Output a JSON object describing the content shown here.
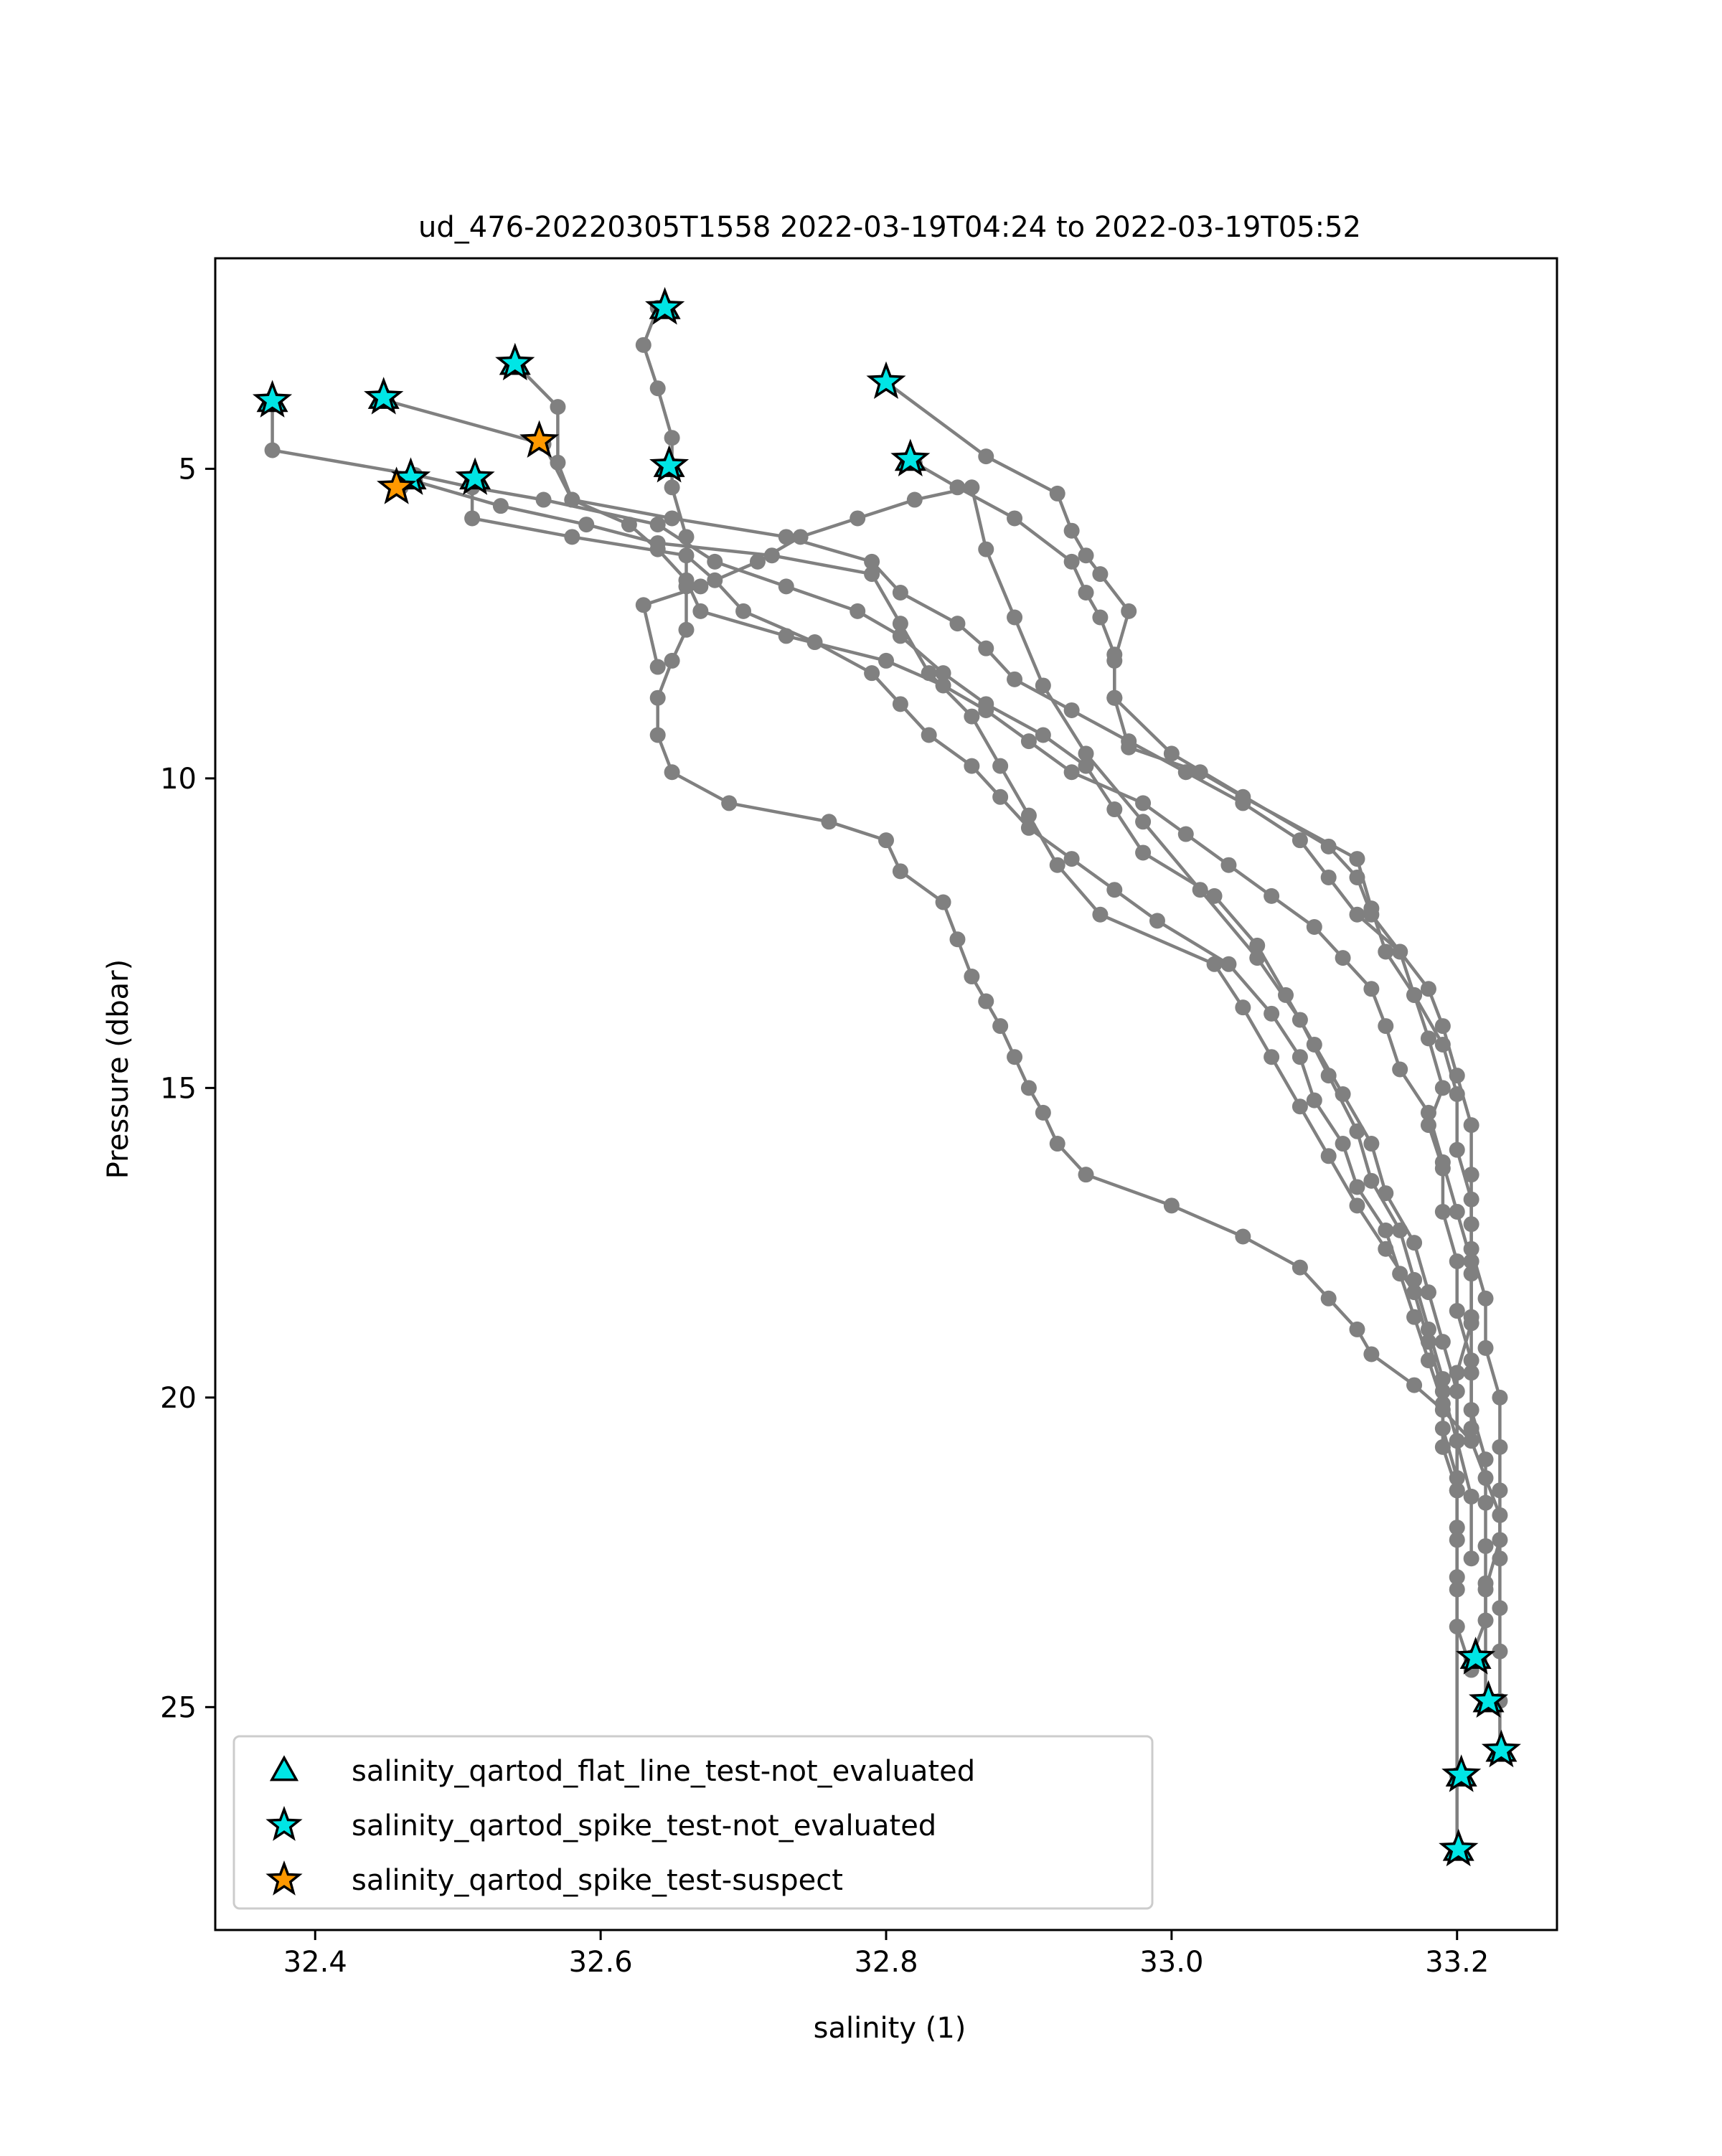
{
  "chart_data": {
    "type": "scatter",
    "title": "ud_476-20220305T1558 2022-03-19T04:24 to 2022-03-19T05:52",
    "xlabel": "salinity (1)",
    "ylabel": "Pressure (dbar)",
    "xlim": [
      32.33,
      33.27
    ],
    "ylim": [
      28.6,
      1.6
    ],
    "y_inverted": true,
    "x_ticks": [
      32.4,
      32.6,
      32.8,
      33.0,
      33.2
    ],
    "x_tick_labels": [
      "32.4",
      "32.6",
      "32.8",
      "33.0",
      "33.2"
    ],
    "y_ticks": [
      5,
      10,
      15,
      20,
      25
    ],
    "y_tick_labels": [
      "5",
      "10",
      "15",
      "20",
      "25"
    ],
    "grid": false,
    "line_color": "#808080",
    "legend_position": "lower-left",
    "legend": [
      {
        "label": "salinity_qartod_flat_line_test-not_evaluated",
        "marker": "triangle",
        "color": "#00e5e5"
      },
      {
        "label": "salinity_qartod_spike_test-not_evaluated",
        "marker": "star",
        "color": "#00e5e5"
      },
      {
        "label": "salinity_qartod_spike_test-suspect",
        "marker": "star",
        "color": "#ff9900"
      }
    ],
    "series": [
      {
        "x": [
          32.8,
          32.87,
          32.92,
          32.93,
          32.94,
          32.95,
          32.97,
          32.96,
          32.96,
          33.0,
          33.11,
          33.13,
          33.14,
          33.16,
          33.17,
          33.18,
          33.19,
          33.18,
          33.19,
          33.19,
          33.2,
          33.2,
          33.21,
          33.21,
          33.22,
          33.22,
          33.22,
          33.22,
          33.22,
          33.21
        ],
        "y": [
          3.6,
          4.8,
          5.4,
          6.0,
          6.4,
          6.7,
          7.3,
          8.1,
          8.7,
          9.6,
          11.1,
          11.6,
          12.2,
          12.8,
          13.5,
          14.2,
          15.0,
          15.6,
          16.3,
          17.0,
          17.8,
          18.6,
          19.4,
          20.2,
          21.0,
          21.7,
          22.4,
          23.0,
          23.6,
          24.2
        ]
      },
      {
        "x": [
          32.82,
          32.85,
          32.89,
          32.93,
          32.94,
          32.95,
          32.96,
          32.96,
          32.97,
          33.02,
          33.05,
          33.13,
          33.14,
          33.15,
          33.17,
          33.19,
          33.2,
          33.2,
          33.21,
          33.21,
          33.22,
          33.22,
          33.23,
          33.23,
          33.23,
          33.23,
          33.22,
          33.22
        ],
        "y": [
          4.9,
          5.3,
          5.8,
          6.5,
          7.0,
          7.4,
          8.0,
          8.7,
          9.5,
          9.9,
          10.3,
          11.3,
          12.1,
          12.8,
          13.5,
          14.3,
          15.1,
          16.0,
          16.8,
          17.6,
          18.4,
          19.2,
          20.0,
          20.8,
          21.5,
          22.3,
          23.1,
          24.9
        ]
      },
      {
        "x": [
          32.64,
          32.63,
          32.64,
          32.65,
          32.65,
          32.66,
          32.66,
          32.66,
          32.65,
          32.64,
          32.64,
          32.65,
          32.69,
          32.76,
          32.8,
          32.81,
          32.84,
          32.85,
          32.86,
          32.87,
          32.88,
          32.89,
          32.9,
          32.91,
          32.92,
          32.94,
          33.0,
          33.05,
          33.09,
          33.11,
          33.13,
          33.14,
          33.17,
          33.19,
          33.21,
          33.22,
          33.23,
          33.23,
          33.23,
          33.23,
          33.23,
          33.23
        ],
        "y": [
          2.4,
          3.0,
          3.7,
          4.5,
          5.3,
          6.1,
          6.9,
          7.6,
          8.1,
          8.7,
          9.3,
          9.9,
          10.4,
          10.7,
          11.0,
          11.5,
          12.0,
          12.6,
          13.2,
          13.6,
          14.0,
          14.5,
          15.0,
          15.4,
          15.9,
          16.4,
          16.9,
          17.4,
          17.9,
          18.4,
          18.9,
          19.3,
          19.8,
          20.2,
          20.7,
          21.3,
          21.9,
          22.6,
          23.4,
          24.1,
          24.9,
          25.7
        ]
      },
      {
        "x": [
          32.54,
          32.57,
          32.57,
          32.58,
          32.62,
          32.64,
          32.66,
          32.67,
          32.73,
          32.8,
          32.84,
          32.87,
          32.9,
          32.93,
          32.98,
          33.01,
          33.04,
          33.07,
          33.1,
          33.12,
          33.14,
          33.15,
          33.16,
          33.18,
          33.19,
          33.2,
          33.21,
          33.21,
          33.21,
          33.21
        ],
        "y": [
          3.3,
          4.0,
          4.9,
          5.5,
          5.9,
          6.3,
          6.8,
          7.3,
          7.7,
          8.1,
          8.5,
          8.9,
          9.4,
          9.9,
          10.4,
          10.9,
          11.4,
          11.9,
          12.4,
          12.9,
          13.4,
          14.0,
          14.7,
          15.4,
          16.2,
          17.0,
          17.8,
          18.7,
          19.6,
          20.5
        ]
      },
      {
        "x": [
          32.45,
          32.56,
          32.58,
          32.65,
          32.73,
          32.79,
          32.81,
          32.85,
          32.87,
          32.89,
          32.93,
          32.97,
          33.01,
          33.05,
          33.09,
          33.11,
          33.13,
          33.16,
          33.18,
          33.19,
          33.2,
          33.21,
          33.21,
          33.21,
          33.21,
          33.21,
          33.2,
          33.2
        ],
        "y": [
          3.9,
          4.6,
          5.5,
          5.8,
          6.1,
          6.5,
          7.0,
          7.5,
          7.9,
          8.4,
          8.9,
          9.4,
          9.9,
          10.4,
          11.0,
          11.6,
          12.2,
          12.8,
          13.4,
          14.0,
          14.8,
          15.6,
          16.4,
          17.2,
          18.0,
          18.8,
          19.6,
          26.1
        ]
      },
      {
        "x": [
          32.37,
          32.37,
          32.47,
          32.51,
          32.56,
          32.64,
          32.68,
          32.73,
          32.78,
          32.81,
          32.84,
          32.87,
          32.91,
          32.94,
          32.96,
          32.98,
          33.03,
          33.06,
          33.08,
          33.1,
          33.12,
          33.14,
          33.15,
          33.17,
          33.18,
          33.19,
          33.2,
          33.2,
          33.2,
          33.2,
          33.2,
          33.2
        ],
        "y": [
          3.9,
          4.7,
          5.1,
          5.3,
          5.5,
          5.9,
          6.5,
          6.9,
          7.3,
          7.7,
          8.3,
          8.8,
          9.3,
          9.8,
          10.5,
          11.2,
          11.9,
          12.7,
          13.5,
          14.3,
          15.1,
          15.9,
          16.7,
          17.5,
          18.3,
          19.1,
          19.9,
          20.7,
          21.5,
          22.3,
          23.1,
          27.3
        ]
      },
      {
        "x": [
          32.51,
          32.51,
          32.58,
          32.66,
          32.68,
          32.7,
          32.75,
          32.79,
          32.81,
          32.83,
          32.86,
          32.88,
          32.9,
          32.93,
          32.96,
          32.99,
          33.04,
          33.07,
          33.09,
          33.1,
          33.12,
          33.13,
          33.15,
          33.16,
          33.17,
          33.18,
          33.19,
          33.19,
          33.2
        ],
        "y": [
          5.2,
          5.8,
          6.1,
          6.4,
          6.8,
          7.3,
          7.8,
          8.3,
          8.8,
          9.3,
          9.8,
          10.3,
          10.8,
          11.3,
          11.8,
          12.3,
          13.0,
          13.8,
          14.5,
          15.2,
          15.9,
          16.6,
          17.3,
          18.0,
          18.7,
          19.4,
          20.1,
          20.8,
          21.5
        ]
      },
      {
        "x": [
          32.46,
          32.47,
          32.53,
          32.59,
          32.64,
          32.72,
          32.79,
          32.81,
          32.83,
          32.86,
          32.88,
          32.9,
          32.92,
          32.95,
          33.03,
          33.05,
          33.07,
          33.09,
          33.11,
          33.13,
          33.15,
          33.17,
          33.18,
          33.19,
          33.2,
          33.21,
          33.21
        ],
        "y": [
          5.3,
          5.2,
          5.6,
          5.9,
          6.2,
          6.4,
          6.7,
          7.5,
          8.3,
          9.0,
          9.8,
          10.6,
          11.4,
          12.2,
          13.0,
          13.7,
          14.5,
          15.3,
          16.1,
          16.9,
          17.6,
          18.3,
          19.1,
          19.9,
          20.7,
          21.6,
          22.6
        ]
      },
      {
        "x": [
          32.64,
          32.63,
          32.67,
          32.71,
          32.74,
          32.78,
          32.82,
          32.86,
          32.87,
          32.89,
          32.91,
          32.94,
          32.98,
          33.02,
          33.06,
          33.09,
          33.11,
          33.13,
          33.14,
          33.16,
          33.17,
          33.18,
          33.19,
          33.19,
          33.2,
          33.2,
          33.2,
          33.2,
          33.21
        ],
        "y": [
          8.2,
          7.2,
          6.9,
          6.5,
          6.1,
          5.8,
          5.5,
          5.3,
          6.3,
          7.4,
          8.5,
          9.6,
          10.7,
          11.8,
          12.9,
          13.9,
          14.8,
          15.7,
          16.5,
          17.3,
          18.1,
          18.9,
          19.7,
          20.5,
          21.3,
          22.1,
          22.9,
          23.7,
          24.4
        ]
      }
    ],
    "flagged_points": [
      {
        "category": "salinity_qartod_spike_test-not_evaluated",
        "x": 32.645,
        "y": 2.4
      },
      {
        "category": "salinity_qartod_spike_test-not_evaluated",
        "x": 32.54,
        "y": 3.3
      },
      {
        "category": "salinity_qartod_spike_test-not_evaluated",
        "x": 32.37,
        "y": 3.9
      },
      {
        "category": "salinity_qartod_spike_test-not_evaluated",
        "x": 32.448,
        "y": 3.85
      },
      {
        "category": "salinity_qartod_spike_test-not_evaluated",
        "x": 32.8,
        "y": 3.6
      },
      {
        "category": "salinity_qartod_spike_test-not_evaluated",
        "x": 32.817,
        "y": 4.85
      },
      {
        "category": "salinity_qartod_spike_test-not_evaluated",
        "x": 32.648,
        "y": 4.95
      },
      {
        "category": "salinity_qartod_spike_test-not_evaluated",
        "x": 32.467,
        "y": 5.15
      },
      {
        "category": "salinity_qartod_spike_test-not_evaluated",
        "x": 32.512,
        "y": 5.15
      },
      {
        "category": "salinity_qartod_spike_test-suspect",
        "x": 32.557,
        "y": 4.55
      },
      {
        "category": "salinity_qartod_spike_test-suspect",
        "x": 32.457,
        "y": 5.3
      },
      {
        "category": "salinity_qartod_spike_test-not_evaluated",
        "x": 33.213,
        "y": 24.2
      },
      {
        "category": "salinity_qartod_spike_test-not_evaluated",
        "x": 33.222,
        "y": 24.9
      },
      {
        "category": "salinity_qartod_spike_test-not_evaluated",
        "x": 33.231,
        "y": 25.7
      },
      {
        "category": "salinity_qartod_spike_test-not_evaluated",
        "x": 33.203,
        "y": 26.1
      },
      {
        "category": "salinity_qartod_spike_test-not_evaluated",
        "x": 33.201,
        "y": 27.3
      },
      {
        "category": "salinity_qartod_flat_line_test-not_evaluated",
        "x": 32.645,
        "y": 2.4
      },
      {
        "category": "salinity_qartod_flat_line_test-not_evaluated",
        "x": 32.54,
        "y": 3.3
      },
      {
        "category": "salinity_qartod_flat_line_test-not_evaluated",
        "x": 32.37,
        "y": 3.9
      },
      {
        "category": "salinity_qartod_flat_line_test-not_evaluated",
        "x": 32.448,
        "y": 3.85
      },
      {
        "category": "salinity_qartod_flat_line_test-not_evaluated",
        "x": 32.817,
        "y": 4.85
      },
      {
        "category": "salinity_qartod_flat_line_test-not_evaluated",
        "x": 32.648,
        "y": 4.95
      },
      {
        "category": "salinity_qartod_flat_line_test-not_evaluated",
        "x": 32.467,
        "y": 5.15
      },
      {
        "category": "salinity_qartod_flat_line_test-not_evaluated",
        "x": 32.512,
        "y": 5.15
      },
      {
        "category": "salinity_qartod_flat_line_test-not_evaluated",
        "x": 33.213,
        "y": 24.2
      },
      {
        "category": "salinity_qartod_flat_line_test-not_evaluated",
        "x": 33.222,
        "y": 24.9
      },
      {
        "category": "salinity_qartod_flat_line_test-not_evaluated",
        "x": 33.231,
        "y": 25.7
      },
      {
        "category": "salinity_qartod_flat_line_test-not_evaluated",
        "x": 33.203,
        "y": 26.1
      },
      {
        "category": "salinity_qartod_flat_line_test-not_evaluated",
        "x": 33.201,
        "y": 27.3
      }
    ]
  }
}
